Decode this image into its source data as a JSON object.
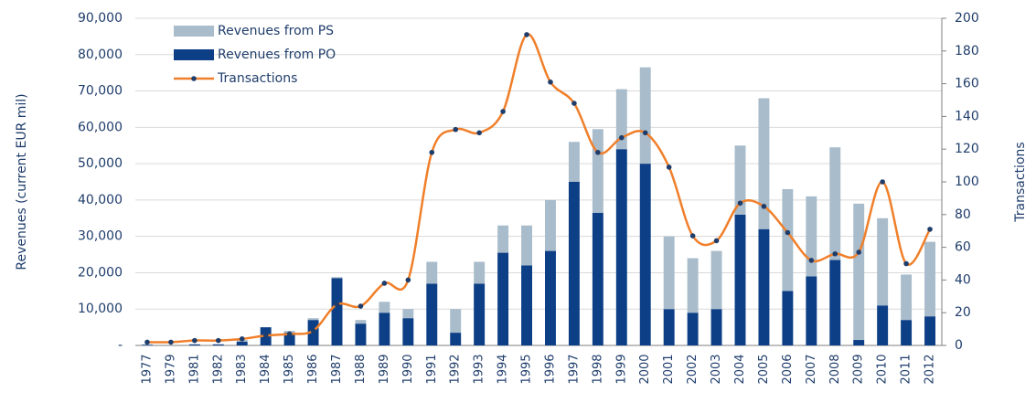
{
  "chart_data": {
    "type": "bar",
    "stacked": true,
    "ylabel": "Revenues (current EUR mil)",
    "y2label": "Transactions",
    "categories": [
      "1977",
      "1979",
      "1981",
      "1982",
      "1983",
      "1984",
      "1985",
      "1986",
      "1987",
      "1988",
      "1989",
      "1990",
      "1991",
      "1992",
      "1993",
      "1994",
      "1995",
      "1996",
      "1997",
      "1998",
      "1999",
      "2000",
      "2001",
      "2002",
      "2003",
      "2004",
      "2005",
      "2006",
      "2007",
      "2008",
      "2009",
      "2010",
      "2011",
      "2012"
    ],
    "series": [
      {
        "name": "Revenues from PS",
        "color": "#a9bccb",
        "type": "bar",
        "values": [
          100,
          0,
          0,
          0,
          500,
          0,
          500,
          500,
          300,
          1000,
          3000,
          2500,
          6000,
          6500,
          6000,
          7500,
          11000,
          14000,
          11000,
          23000,
          16500,
          26500,
          20000,
          15000,
          16000,
          19000,
          36000,
          28000,
          22000,
          31000,
          37500,
          24000,
          12500,
          20500
        ]
      },
      {
        "name": "Revenues from PO",
        "color": "#0d3f86",
        "type": "bar",
        "values": [
          200,
          0,
          300,
          300,
          1000,
          5000,
          3500,
          7000,
          18500,
          6000,
          9000,
          7500,
          17000,
          3500,
          17000,
          25500,
          22000,
          26000,
          45000,
          36500,
          54000,
          50000,
          10000,
          9000,
          10000,
          36000,
          32000,
          15000,
          19000,
          23500,
          1500,
          11000,
          7000,
          8000
        ]
      },
      {
        "name": "Transactions",
        "color": "#f07f2a",
        "type": "line",
        "axis": "y2",
        "marker_color": "#1f3d6b",
        "values": [
          2,
          2,
          3,
          3,
          4,
          6,
          7,
          9,
          25,
          24,
          38,
          40,
          118,
          132,
          130,
          143,
          190,
          161,
          148,
          118,
          127,
          130,
          109,
          67,
          64,
          87,
          85,
          69,
          52,
          56,
          57,
          100,
          50,
          71
        ]
      }
    ],
    "ylim": [
      0,
      90000
    ],
    "yticks": [
      {
        "value": 0,
        "label": "-"
      },
      {
        "value": 10000,
        "label": "10,000"
      },
      {
        "value": 20000,
        "label": "20,000"
      },
      {
        "value": 30000,
        "label": "30,000"
      },
      {
        "value": 40000,
        "label": "40,000"
      },
      {
        "value": 50000,
        "label": "50,000"
      },
      {
        "value": 60000,
        "label": "60,000"
      },
      {
        "value": 70000,
        "label": "70,000"
      },
      {
        "value": 80000,
        "label": "80,000"
      },
      {
        "value": 90000,
        "label": "90,000"
      }
    ],
    "y2lim": [
      0,
      200
    ],
    "y2ticks": [
      0,
      20,
      40,
      60,
      80,
      100,
      120,
      140,
      160,
      180,
      200
    ],
    "grid": true,
    "legend": "upper left"
  }
}
